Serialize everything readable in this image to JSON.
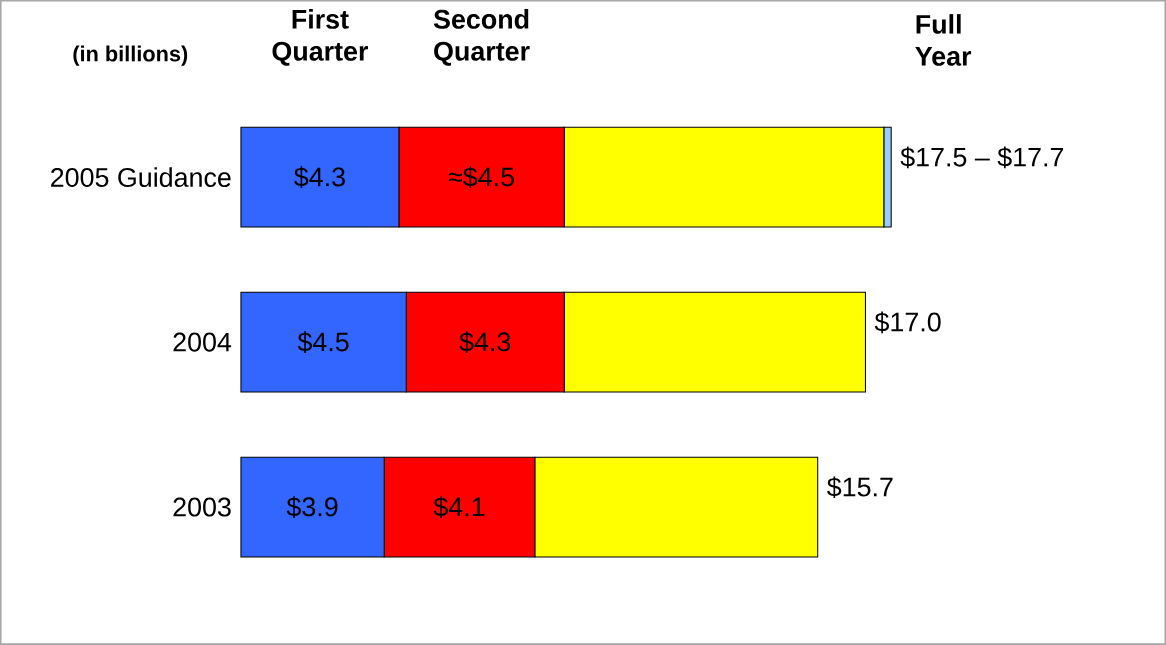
{
  "chart_data": {
    "type": "bar",
    "orientation": "horizontal",
    "stacked": true,
    "categories": [
      "2005 Guidance",
      "2004",
      "2003"
    ],
    "series": [
      {
        "name": "First Quarter",
        "color": "#3366ff",
        "values": [
          4.3,
          4.5,
          3.9
        ],
        "value_labels": [
          "$4.3",
          "$4.5",
          "$3.9"
        ]
      },
      {
        "name": "Second Quarter",
        "color": "#ff0000",
        "values": [
          4.5,
          4.3,
          4.1
        ],
        "value_labels": [
          "≈$4.5",
          "$4.3",
          "$4.1"
        ]
      },
      {
        "color": "#ffff00",
        "values": [
          8.7,
          8.2,
          7.7
        ]
      },
      {
        "color": "#99ccff",
        "values": [
          0.2,
          null,
          null
        ]
      }
    ],
    "totals": [
      "$17.5 – $17.7",
      "$17.0",
      "$15.7"
    ],
    "annotations": [
      "(in billions)",
      "Full Year"
    ]
  }
}
